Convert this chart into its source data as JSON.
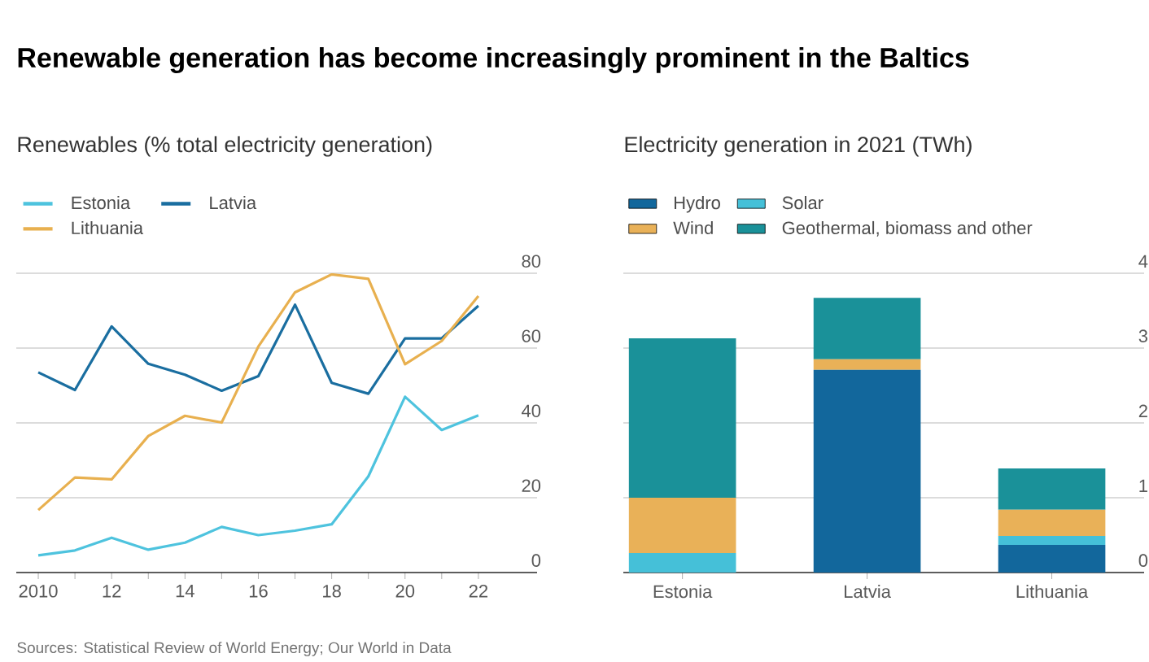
{
  "chart_data": [
    {
      "type": "line",
      "title": "Renewable generation has become increasingly prominent in the Baltics",
      "subtitle": "Renewables (% total electricity generation)",
      "x": [
        2010,
        2011,
        2012,
        2013,
        2014,
        2015,
        2016,
        2017,
        2018,
        2019,
        2020,
        2021,
        2022
      ],
      "series": [
        {
          "name": "Estonia",
          "color": "#4ec3de",
          "values": [
            4.6,
            5.9,
            9.3,
            6.1,
            8,
            12.2,
            10,
            11.2,
            12.9,
            25.7,
            47,
            38.1,
            42
          ]
        },
        {
          "name": "Latvia",
          "color": "#1a6ea0",
          "values": [
            53.5,
            48.8,
            65.8,
            55.8,
            52.9,
            48.6,
            52.5,
            71.6,
            50.7,
            47.8,
            62.6,
            62.6,
            71.3
          ]
        },
        {
          "name": "Lithuania",
          "color": "#e8b04f",
          "values": [
            16.7,
            25.4,
            24.9,
            36.5,
            41.9,
            40.1,
            60.4,
            74.9,
            79.7,
            78.5,
            55.7,
            61.9,
            73.9
          ]
        }
      ],
      "xlim": [
        2009.4,
        2023.6
      ],
      "ylim": [
        0,
        80
      ],
      "xticks": [
        {
          "value": 2010,
          "label": "2010"
        },
        {
          "value": 2011,
          "label": null
        },
        {
          "value": 2012,
          "label": "12"
        },
        {
          "value": 2013,
          "label": null
        },
        {
          "value": 2014,
          "label": "14"
        },
        {
          "value": 2015,
          "label": null
        },
        {
          "value": 2016,
          "label": "16"
        },
        {
          "value": 2017,
          "label": null
        },
        {
          "value": 2018,
          "label": "18"
        },
        {
          "value": 2019,
          "label": null
        },
        {
          "value": 2020,
          "label": "20"
        },
        {
          "value": 2021,
          "label": null
        },
        {
          "value": 2022,
          "label": "22"
        }
      ],
      "yticks": [
        0,
        20,
        40,
        60,
        80
      ],
      "grid": "y",
      "legend": "top left",
      "annotations": [
        "Sources: Statistical Review of World Energy; Our World in Data"
      ]
    },
    {
      "type": "bar",
      "title": "Electricity generation in 2021 (TWh)",
      "categories": [
        "Estonia",
        "Latvia",
        "Lithuania"
      ],
      "stacked": true,
      "series": [
        {
          "name": "Hydro",
          "color": "#12679c",
          "values": [
            0,
            2.71,
            0.37
          ]
        },
        {
          "name": "Solar",
          "color": "#45c0d8",
          "values": [
            0.26,
            0,
            0.12
          ]
        },
        {
          "name": "Wind",
          "color": "#e9b158",
          "values": [
            0.74,
            0.14,
            0.35
          ]
        },
        {
          "name": "Geothermal, biomass and other",
          "color": "#1a9199",
          "values": [
            2.13,
            0.82,
            0.55
          ]
        }
      ],
      "ylim": [
        0,
        4
      ],
      "yticks": [
        0,
        1,
        2,
        3,
        4
      ],
      "grid": "y",
      "legend": "top left"
    }
  ]
}
